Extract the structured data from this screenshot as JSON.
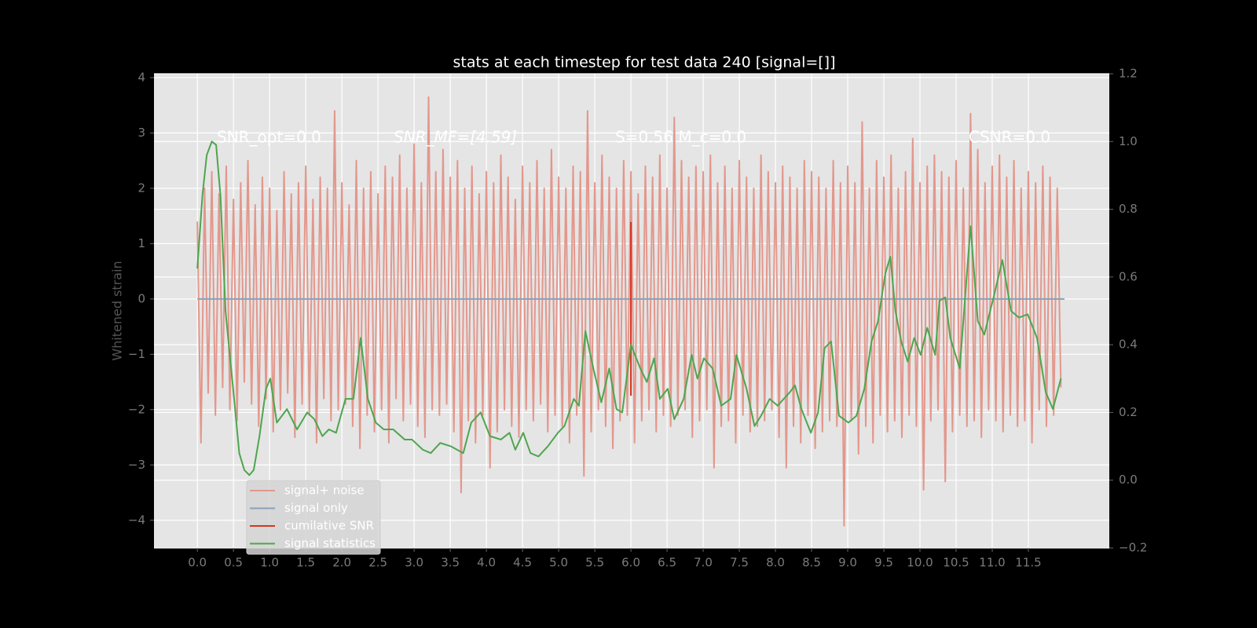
{
  "chart_data": {
    "type": "line",
    "title": "stats at each timestep for test data 240 [signal=[]]",
    "ylabel": "Whitened strain",
    "annotations": [
      "SNR_opt=0.0",
      "SNR_MF=[4.59]",
      "S=0.56  M_c=0.0",
      "CSNR=0.0"
    ],
    "xlim": [
      -0.6,
      12.62
    ],
    "ylim": [
      -4.5,
      4.07
    ],
    "y2lim": [
      -0.2,
      1.2
    ],
    "xticks": [
      {
        "value": 0,
        "label": "0.0"
      },
      0.5,
      {
        "value": 1,
        "label": "1.0"
      },
      1.5,
      {
        "value": 2,
        "label": "2.0"
      },
      2.5,
      {
        "value": 3,
        "label": "3.0"
      },
      3.5,
      {
        "value": 4,
        "label": "4.0"
      },
      4.5,
      {
        "value": 5,
        "label": "5.0"
      },
      5.5,
      {
        "value": 6,
        "label": "6.0"
      },
      6.5,
      {
        "value": 7,
        "label": "7.0"
      },
      7.5,
      {
        "value": 8,
        "label": "8.0"
      },
      8.5,
      {
        "value": 9,
        "label": "9.0"
      },
      9.5,
      {
        "value": 10,
        "label": "10.0"
      },
      10.5,
      {
        "value": 11,
        "label": "11.0"
      },
      11.5
    ],
    "yticks": [
      {
        "value": -4,
        "label": "−4"
      },
      {
        "value": -3,
        "label": "−3"
      },
      {
        "value": -2,
        "label": "−2"
      },
      {
        "value": -1,
        "label": "−1"
      },
      0,
      1,
      2,
      3,
      4
    ],
    "y2ticks": [
      {
        "value": -0.2,
        "label": "−0.2"
      },
      {
        "value": 0,
        "label": "0.0"
      },
      0.2,
      0.4,
      0.6,
      0.8,
      {
        "value": 1,
        "label": "1.0"
      },
      1.2
    ],
    "grid": true,
    "legend": "lower left",
    "series": [
      {
        "name": "signal+ noise",
        "color": "#e3978c",
        "x": [
          0,
          0.05,
          0.1,
          0.15,
          0.2,
          0.25,
          0.3,
          0.35,
          0.4,
          0.45,
          0.5,
          0.55,
          0.6,
          0.65,
          0.7,
          0.75,
          0.8,
          0.85,
          0.9,
          0.95,
          1,
          1.05,
          1.1,
          1.15,
          1.2,
          1.25,
          1.3,
          1.35,
          1.4,
          1.45,
          1.5,
          1.55,
          1.6,
          1.65,
          1.7,
          1.75,
          1.8,
          1.85,
          1.9,
          1.95,
          2,
          2.05,
          2.1,
          2.15,
          2.2,
          2.25,
          2.3,
          2.35,
          2.4,
          2.45,
          2.5,
          2.55,
          2.6,
          2.65,
          2.7,
          2.75,
          2.8,
          2.85,
          2.9,
          2.95,
          3,
          3.05,
          3.1,
          3.15,
          3.2,
          3.25,
          3.3,
          3.35,
          3.4,
          3.45,
          3.5,
          3.55,
          3.6,
          3.65,
          3.7,
          3.75,
          3.8,
          3.85,
          3.9,
          3.95,
          4,
          4.05,
          4.1,
          4.15,
          4.2,
          4.25,
          4.3,
          4.35,
          4.4,
          4.45,
          4.5,
          4.55,
          4.6,
          4.65,
          4.7,
          4.75,
          4.8,
          4.85,
          4.9,
          4.95,
          5,
          5.05,
          5.1,
          5.15,
          5.2,
          5.25,
          5.3,
          5.35,
          5.4,
          5.45,
          5.5,
          5.55,
          5.6,
          5.65,
          5.7,
          5.75,
          5.8,
          5.85,
          5.9,
          5.95,
          6,
          6.05,
          6.1,
          6.15,
          6.2,
          6.25,
          6.3,
          6.35,
          6.4,
          6.45,
          6.5,
          6.55,
          6.6,
          6.65,
          6.7,
          6.75,
          6.8,
          6.85,
          6.9,
          6.95,
          7,
          7.05,
          7.1,
          7.15,
          7.2,
          7.25,
          7.3,
          7.35,
          7.4,
          7.45,
          7.5,
          7.55,
          7.6,
          7.65,
          7.7,
          7.75,
          7.8,
          7.85,
          7.9,
          7.95,
          8,
          8.05,
          8.1,
          8.15,
          8.2,
          8.25,
          8.3,
          8.35,
          8.4,
          8.45,
          8.5,
          8.55,
          8.6,
          8.65,
          8.7,
          8.75,
          8.8,
          8.85,
          8.9,
          8.95,
          9,
          9.05,
          9.1,
          9.15,
          9.2,
          9.25,
          9.3,
          9.35,
          9.4,
          9.45,
          9.5,
          9.55,
          9.6,
          9.65,
          9.7,
          9.75,
          9.8,
          9.85,
          9.9,
          9.95,
          10,
          10.05,
          10.1,
          10.15,
          10.2,
          10.25,
          10.3,
          10.35,
          10.4,
          10.45,
          10.5,
          10.55,
          10.6,
          10.65,
          10.7,
          10.75,
          10.8,
          10.85,
          10.9,
          10.95,
          11,
          11.05,
          11.1,
          11.15,
          11.2,
          11.25,
          11.3,
          11.35,
          11.4,
          11.45,
          11.5,
          11.55,
          11.6,
          11.65,
          11.7,
          11.75,
          11.8,
          11.85,
          11.9,
          11.95
        ],
        "values": [
          1.4,
          -2.6,
          2.0,
          -1.7,
          2.3,
          -2.1,
          1.9,
          -1.6,
          2.4,
          -2.0,
          1.8,
          -2.2,
          2.1,
          -1.5,
          2.5,
          -1.9,
          1.7,
          -2.3,
          2.2,
          -1.8,
          2.0,
          -2.4,
          1.6,
          -2.0,
          2.3,
          -1.7,
          1.9,
          -2.5,
          2.1,
          -1.9,
          2.4,
          -2.1,
          1.8,
          -2.6,
          2.2,
          -1.8,
          2.0,
          -2.2,
          3.4,
          -2.0,
          2.1,
          -1.9,
          1.7,
          -2.3,
          2.5,
          -2.7,
          2.0,
          -2.1,
          2.3,
          -2.4,
          1.9,
          -2.0,
          2.4,
          -2.6,
          2.2,
          -1.8,
          2.6,
          -2.2,
          2.0,
          -1.9,
          2.8,
          -2.3,
          2.1,
          -2.5,
          3.65,
          -2.0,
          2.3,
          -2.1,
          2.7,
          -1.9,
          2.2,
          -2.4,
          2.5,
          -3.5,
          2.0,
          -2.2,
          2.4,
          -2.6,
          1.9,
          -2.1,
          2.3,
          -3.05,
          2.1,
          -2.4,
          2.6,
          -2.0,
          2.2,
          -2.3,
          1.8,
          -2.5,
          2.4,
          -2.0,
          2.1,
          -2.2,
          2.5,
          -1.9,
          2.0,
          -2.4,
          2.7,
          -2.1,
          2.2,
          -2.3,
          2.0,
          -2.6,
          2.4,
          -2.1,
          2.3,
          -3.2,
          3.4,
          -2.4,
          2.1,
          -2.0,
          2.6,
          -2.3,
          2.2,
          -2.7,
          2.0,
          -2.2,
          2.5,
          -2.1,
          2.3,
          -2.6,
          1.9,
          -2.2,
          2.4,
          -2.0,
          2.2,
          -2.4,
          2.6,
          -2.1,
          2.0,
          -2.3,
          3.28,
          -2.1,
          2.5,
          -2.0,
          2.2,
          -2.5,
          2.4,
          -2.2,
          2.3,
          -2.0,
          2.6,
          -3.05,
          2.1,
          -2.3,
          2.4,
          -2.2,
          2.0,
          -2.6,
          2.5,
          -2.1,
          2.2,
          -2.4,
          2.0,
          -2.3,
          2.6,
          -2.2,
          2.3,
          -2.0,
          2.1,
          -2.5,
          2.4,
          -3.05,
          2.2,
          -2.3,
          2.0,
          -2.6,
          2.5,
          -2.1,
          2.3,
          -2.7,
          2.2,
          -2.4,
          2.0,
          -2.2,
          2.5,
          -2.3,
          2.1,
          -4.1,
          2.4,
          -2.2,
          2.1,
          -2.8,
          3.2,
          -2.3,
          2.0,
          -2.6,
          2.5,
          -2.1,
          2.2,
          -2.4,
          2.6,
          -2.2,
          2.0,
          -2.5,
          2.3,
          -2.1,
          2.9,
          -2.3,
          2.1,
          -3.45,
          2.4,
          -2.2,
          2.6,
          -2.0,
          2.3,
          -3.3,
          2.2,
          -2.4,
          2.5,
          -2.1,
          2.0,
          -2.3,
          3.35,
          -2.2,
          2.7,
          -2.5,
          2.1,
          -2.0,
          2.4,
          -2.2,
          2.6,
          -2.4,
          2.2,
          -2.1,
          2.5,
          -2.3,
          2.0,
          -2.2,
          2.3,
          -2.6,
          2.1,
          -2.0,
          2.4,
          -2.3,
          2.2,
          -2.1,
          2.0,
          -1.6
        ]
      },
      {
        "name": "signal only",
        "color": "#8aa1b8",
        "x": [
          0,
          12
        ],
        "values": [
          0,
          0
        ]
      },
      {
        "name": "cumilative SNR",
        "color": "#d8321e",
        "x": [
          6,
          6
        ],
        "values": [
          -1.75,
          1.39
        ]
      },
      {
        "name": "signal statistics",
        "color": "#4ea54e",
        "axis": "y2",
        "x": [
          0,
          0.07,
          0.13,
          0.2,
          0.26,
          0.32,
          0.39,
          0.5,
          0.58,
          0.65,
          0.72,
          0.78,
          0.86,
          0.95,
          1.01,
          1.1,
          1.24,
          1.38,
          1.52,
          1.62,
          1.73,
          1.82,
          1.92,
          2.05,
          2.16,
          2.26,
          2.36,
          2.47,
          2.58,
          2.71,
          2.87,
          2.97,
          3.12,
          3.23,
          3.36,
          3.51,
          3.68,
          3.79,
          3.92,
          4.05,
          4.2,
          4.32,
          4.4,
          4.51,
          4.61,
          4.72,
          4.85,
          4.99,
          5.08,
          5.21,
          5.28,
          5.37,
          5.48,
          5.59,
          5.7,
          5.8,
          5.88,
          6.0,
          6.13,
          6.22,
          6.32,
          6.4,
          6.51,
          6.6,
          6.73,
          6.84,
          6.92,
          7.01,
          7.13,
          7.25,
          7.38,
          7.46,
          7.6,
          7.71,
          7.8,
          7.92,
          8.03,
          8.2,
          8.27,
          8.36,
          8.49,
          8.59,
          8.68,
          8.77,
          8.88,
          9.01,
          9.12,
          9.23,
          9.33,
          9.42,
          9.52,
          9.59,
          9.66,
          9.74,
          9.83,
          9.92,
          10.01,
          10.1,
          10.21,
          10.27,
          10.35,
          10.42,
          10.55,
          10.7,
          10.8,
          10.89,
          11.03,
          11.14,
          11.26,
          11.37,
          11.49,
          11.62,
          11.74,
          11.84,
          11.95
        ],
        "values": [
          0.625,
          0.84,
          0.96,
          1.0,
          0.99,
          0.84,
          0.5,
          0.26,
          0.08,
          0.03,
          0.015,
          0.03,
          0.13,
          0.27,
          0.3,
          0.17,
          0.21,
          0.15,
          0.2,
          0.18,
          0.13,
          0.15,
          0.14,
          0.24,
          0.24,
          0.42,
          0.24,
          0.17,
          0.15,
          0.15,
          0.12,
          0.12,
          0.09,
          0.08,
          0.11,
          0.1,
          0.08,
          0.17,
          0.2,
          0.13,
          0.12,
          0.14,
          0.09,
          0.14,
          0.08,
          0.07,
          0.1,
          0.14,
          0.16,
          0.24,
          0.22,
          0.44,
          0.33,
          0.23,
          0.33,
          0.21,
          0.2,
          0.4,
          0.33,
          0.29,
          0.36,
          0.24,
          0.27,
          0.18,
          0.24,
          0.37,
          0.3,
          0.36,
          0.33,
          0.22,
          0.24,
          0.37,
          0.27,
          0.16,
          0.19,
          0.24,
          0.22,
          0.26,
          0.28,
          0.21,
          0.14,
          0.2,
          0.39,
          0.41,
          0.19,
          0.17,
          0.19,
          0.27,
          0.41,
          0.47,
          0.61,
          0.66,
          0.5,
          0.41,
          0.35,
          0.42,
          0.37,
          0.45,
          0.37,
          0.53,
          0.54,
          0.42,
          0.33,
          0.75,
          0.47,
          0.43,
          0.55,
          0.65,
          0.5,
          0.48,
          0.49,
          0.42,
          0.26,
          0.21,
          0.3
        ]
      }
    ]
  }
}
